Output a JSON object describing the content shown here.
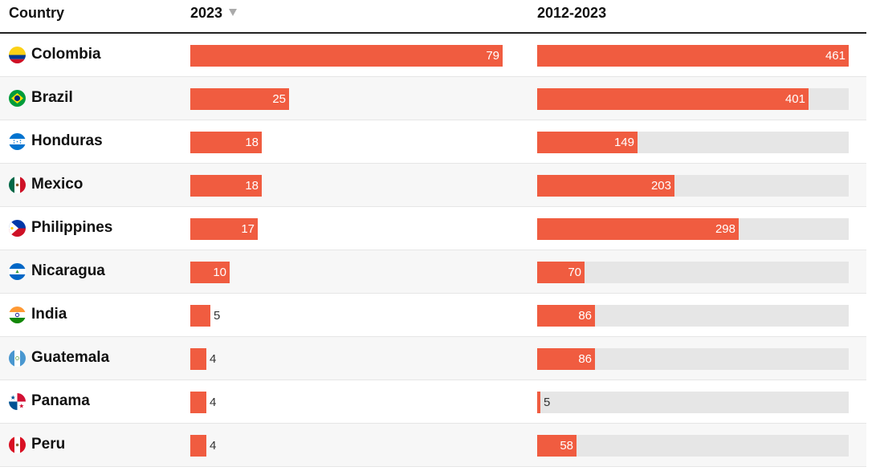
{
  "header": {
    "country": "Country",
    "col_2023": "2023",
    "col_range": "2012-2023"
  },
  "colors": {
    "bar": "#f05c40",
    "track": "#e6e6e6",
    "alt_row": "#f7f7f7"
  },
  "chart_data": {
    "type": "bar",
    "categories": [
      "Colombia",
      "Brazil",
      "Honduras",
      "Mexico",
      "Philippines",
      "Nicaragua",
      "India",
      "Guatemala",
      "Panama",
      "Peru"
    ],
    "series": [
      {
        "name": "2023",
        "values": [
          79,
          25,
          18,
          18,
          17,
          10,
          5,
          4,
          4,
          4
        ]
      },
      {
        "name": "2012-2023",
        "values": [
          461,
          401,
          149,
          203,
          298,
          70,
          86,
          86,
          5,
          58
        ]
      }
    ],
    "xlim_2023": [
      0,
      79
    ],
    "xlim_range": [
      0,
      461
    ],
    "sorted_by": "2023"
  },
  "rows": [
    {
      "country": "Colombia",
      "v2023": "79",
      "vrange": "461",
      "flag": "colombia-flag-icon"
    },
    {
      "country": "Brazil",
      "v2023": "25",
      "vrange": "401",
      "flag": "brazil-flag-icon"
    },
    {
      "country": "Honduras",
      "v2023": "18",
      "vrange": "149",
      "flag": "honduras-flag-icon"
    },
    {
      "country": "Mexico",
      "v2023": "18",
      "vrange": "203",
      "flag": "mexico-flag-icon"
    },
    {
      "country": "Philippines",
      "v2023": "17",
      "vrange": "298",
      "flag": "philippines-flag-icon"
    },
    {
      "country": "Nicaragua",
      "v2023": "10",
      "vrange": "70",
      "flag": "nicaragua-flag-icon"
    },
    {
      "country": "India",
      "v2023": "5",
      "vrange": "86",
      "flag": "india-flag-icon"
    },
    {
      "country": "Guatemala",
      "v2023": "4",
      "vrange": "86",
      "flag": "guatemala-flag-icon"
    },
    {
      "country": "Panama",
      "v2023": "4",
      "vrange": "5",
      "flag": "panama-flag-icon"
    },
    {
      "country": "Peru",
      "v2023": "4",
      "vrange": "58",
      "flag": "peru-flag-icon"
    }
  ]
}
